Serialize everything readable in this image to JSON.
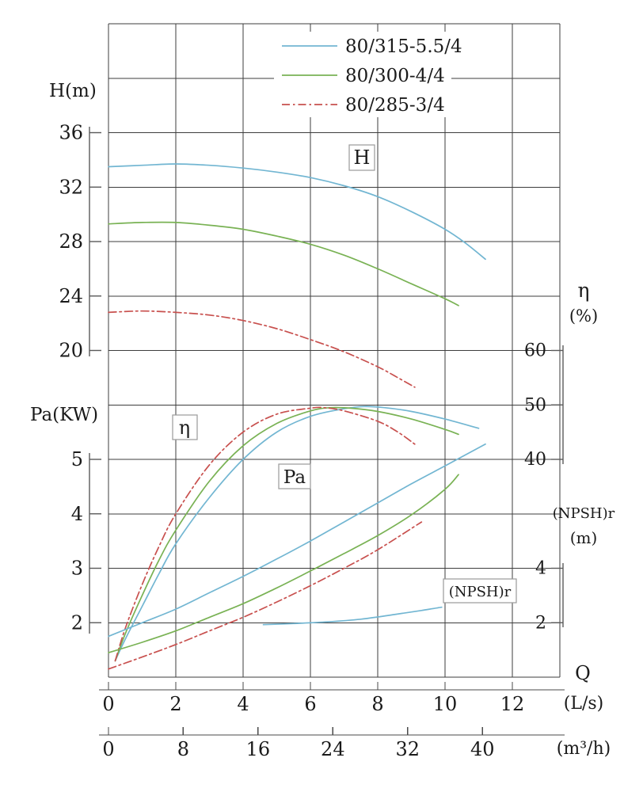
{
  "legend": {
    "items": [
      {
        "label": "80/315-5.5/4",
        "color": "#72b6d2",
        "dash": "solid"
      },
      {
        "label": "80/300-4/4",
        "color": "#79b254",
        "dash": "solid"
      },
      {
        "label": "80/285-3/4",
        "color": "#c8504e",
        "dash": "dashdot"
      }
    ]
  },
  "axis_labels": {
    "head": "H(m)",
    "power": "Pa(KW)",
    "efficiency_symbol": "η",
    "efficiency_unit": "(%)",
    "npsh": "(NPSH)r",
    "npsh_unit": "(m)",
    "flow_symbol": "Q",
    "flow_unit_ls": "(L/s)",
    "flow_unit_m3h": "(m³/h)"
  },
  "curve_labels": {
    "head": "H",
    "efficiency": "η",
    "power": "Pa",
    "npsh": "(NPSH)r"
  },
  "chart_data": {
    "type": "line",
    "x_axis": {
      "label": "Q",
      "units": [
        "L/s",
        "m³/h"
      ],
      "range_ls": [
        0,
        13.4
      ],
      "ticks_ls": [
        0,
        2,
        4,
        6,
        8,
        10,
        12
      ],
      "ticks_m3h": [
        0,
        8,
        16,
        24,
        32,
        40
      ]
    },
    "y_axes": [
      {
        "id": "H",
        "label": "H(m)",
        "ticks": [
          36,
          32,
          28,
          24,
          20
        ]
      },
      {
        "id": "Pa",
        "label": "Pa(KW)",
        "ticks": [
          5,
          4,
          3,
          2
        ]
      },
      {
        "id": "eta",
        "label": "η(%)",
        "ticks": [
          60,
          50,
          40
        ]
      },
      {
        "id": "npsh",
        "label": "(NPSH)r(m)",
        "ticks": [
          4,
          2
        ]
      }
    ],
    "grid": true,
    "legend_position": "top-center",
    "series": [
      {
        "pump": "80/315-5.5/4",
        "quantity": "H",
        "unit": "m",
        "color": "#72b6d2",
        "dash": "solid",
        "points": [
          [
            0,
            33.5
          ],
          [
            1,
            33.6
          ],
          [
            2,
            33.7
          ],
          [
            3,
            33.6
          ],
          [
            4,
            33.4
          ],
          [
            5,
            33.1
          ],
          [
            6,
            32.7
          ],
          [
            7,
            32.1
          ],
          [
            8,
            31.3
          ],
          [
            9,
            30.2
          ],
          [
            10,
            28.9
          ],
          [
            10.6,
            27.9
          ],
          [
            11.2,
            26.7
          ]
        ]
      },
      {
        "pump": "80/300-4/4",
        "quantity": "H",
        "unit": "m",
        "color": "#79b254",
        "dash": "solid",
        "points": [
          [
            0,
            29.3
          ],
          [
            1,
            29.4
          ],
          [
            2,
            29.4
          ],
          [
            3,
            29.2
          ],
          [
            4,
            28.9
          ],
          [
            5,
            28.4
          ],
          [
            6,
            27.8
          ],
          [
            7,
            27.0
          ],
          [
            8,
            26.0
          ],
          [
            9,
            24.9
          ],
          [
            10,
            23.8
          ],
          [
            10.4,
            23.3
          ]
        ]
      },
      {
        "pump": "80/285-3/4",
        "quantity": "H",
        "unit": "m",
        "color": "#c8504e",
        "dash": "dashdot",
        "points": [
          [
            0,
            22.8
          ],
          [
            1,
            22.9
          ],
          [
            2,
            22.8
          ],
          [
            3,
            22.6
          ],
          [
            4,
            22.2
          ],
          [
            5,
            21.6
          ],
          [
            6,
            20.8
          ],
          [
            7,
            19.9
          ],
          [
            8,
            18.8
          ],
          [
            8.6,
            18.0
          ],
          [
            9.1,
            17.3
          ]
        ]
      },
      {
        "pump": "80/315-5.5/4",
        "quantity": "eta",
        "unit": "%",
        "color": "#72b6d2",
        "dash": "solid",
        "points": [
          [
            0.2,
            3
          ],
          [
            0.5,
            7
          ],
          [
            1,
            13
          ],
          [
            1.5,
            19
          ],
          [
            2,
            24.5
          ],
          [
            3,
            33
          ],
          [
            4,
            40
          ],
          [
            5,
            45
          ],
          [
            6,
            47.9
          ],
          [
            7,
            49.3
          ],
          [
            7.6,
            49.7
          ],
          [
            8.2,
            49.5
          ],
          [
            9,
            48.8
          ],
          [
            10,
            47.4
          ],
          [
            11,
            45.7
          ]
        ]
      },
      {
        "pump": "80/300-4/4",
        "quantity": "eta",
        "unit": "%",
        "color": "#79b254",
        "dash": "solid",
        "points": [
          [
            0.2,
            3
          ],
          [
            0.5,
            8
          ],
          [
            1,
            15
          ],
          [
            1.5,
            21.5
          ],
          [
            2,
            27
          ],
          [
            3,
            36
          ],
          [
            4,
            42.5
          ],
          [
            5,
            46.6
          ],
          [
            6,
            48.9
          ],
          [
            6.6,
            49.5
          ],
          [
            7.2,
            49.4
          ],
          [
            8,
            48.8
          ],
          [
            9,
            47.4
          ],
          [
            10,
            45.5
          ],
          [
            10.4,
            44.6
          ]
        ]
      },
      {
        "pump": "80/285-3/4",
        "quantity": "eta",
        "unit": "%",
        "color": "#c8504e",
        "dash": "dashdot",
        "points": [
          [
            0.2,
            3
          ],
          [
            0.5,
            9
          ],
          [
            1,
            17
          ],
          [
            1.5,
            24
          ],
          [
            2,
            30
          ],
          [
            3,
            39
          ],
          [
            4,
            45
          ],
          [
            5,
            48.3
          ],
          [
            6,
            49.4
          ],
          [
            6.4,
            49.5
          ],
          [
            7,
            48.9
          ],
          [
            8,
            47.0
          ],
          [
            8.6,
            45.0
          ],
          [
            9.1,
            42.8
          ]
        ]
      },
      {
        "pump": "80/315-5.5/4",
        "quantity": "Pa",
        "unit": "KW",
        "color": "#72b6d2",
        "dash": "solid",
        "points": [
          [
            0,
            1.75
          ],
          [
            1,
            2.0
          ],
          [
            2,
            2.25
          ],
          [
            3,
            2.55
          ],
          [
            4,
            2.85
          ],
          [
            5,
            3.17
          ],
          [
            6,
            3.5
          ],
          [
            7,
            3.85
          ],
          [
            8,
            4.2
          ],
          [
            9,
            4.55
          ],
          [
            10,
            4.88
          ],
          [
            11.2,
            5.28
          ]
        ]
      },
      {
        "pump": "80/300-4/4",
        "quantity": "Pa",
        "unit": "KW",
        "color": "#79b254",
        "dash": "solid",
        "points": [
          [
            0,
            1.45
          ],
          [
            1,
            1.64
          ],
          [
            2,
            1.85
          ],
          [
            3,
            2.1
          ],
          [
            4,
            2.35
          ],
          [
            5,
            2.64
          ],
          [
            6,
            2.95
          ],
          [
            7,
            3.27
          ],
          [
            8,
            3.6
          ],
          [
            9,
            3.98
          ],
          [
            10,
            4.45
          ],
          [
            10.4,
            4.72
          ]
        ]
      },
      {
        "pump": "80/285-3/4",
        "quantity": "Pa",
        "unit": "KW",
        "color": "#c8504e",
        "dash": "dashdot",
        "points": [
          [
            0,
            1.15
          ],
          [
            1,
            1.37
          ],
          [
            2,
            1.6
          ],
          [
            3,
            1.85
          ],
          [
            4,
            2.1
          ],
          [
            5,
            2.38
          ],
          [
            6,
            2.68
          ],
          [
            7,
            3.0
          ],
          [
            8,
            3.34
          ],
          [
            9.3,
            3.85
          ]
        ]
      },
      {
        "pump": "80/315-5.5/4",
        "quantity": "npsh",
        "unit": "m",
        "color": "#72b6d2",
        "dash": "solid",
        "points": [
          [
            4.6,
            1.93
          ],
          [
            5.5,
            1.97
          ],
          [
            6.5,
            2.03
          ],
          [
            7.5,
            2.13
          ],
          [
            8.5,
            2.3
          ],
          [
            9.3,
            2.45
          ],
          [
            9.9,
            2.57
          ]
        ]
      }
    ]
  }
}
